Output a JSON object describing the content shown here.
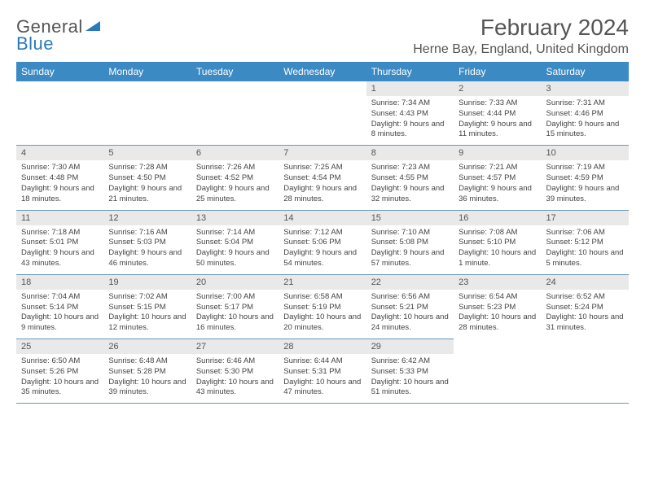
{
  "logo": {
    "word1": "General",
    "word2": "Blue"
  },
  "title": {
    "month": "February 2024",
    "location": "Herne Bay, England, United Kingdom"
  },
  "headers": [
    "Sunday",
    "Monday",
    "Tuesday",
    "Wednesday",
    "Thursday",
    "Friday",
    "Saturday"
  ],
  "colors": {
    "header_bg": "#3b8ac4",
    "header_text": "#ffffff",
    "daynum_bg": "#e9e9e9",
    "border": "#6a99bd",
    "text": "#444444",
    "title_text": "#555555",
    "logo_blue": "#2a7ab9"
  },
  "typography": {
    "month_fontsize": 28,
    "location_fontsize": 16,
    "header_fontsize": 12,
    "daynum_fontsize": 11,
    "content_fontsize": 9.5
  },
  "weeks": [
    [
      {
        "n": "",
        "sr": "",
        "ss": "",
        "dl": ""
      },
      {
        "n": "",
        "sr": "",
        "ss": "",
        "dl": ""
      },
      {
        "n": "",
        "sr": "",
        "ss": "",
        "dl": ""
      },
      {
        "n": "",
        "sr": "",
        "ss": "",
        "dl": ""
      },
      {
        "n": "1",
        "sr": "Sunrise: 7:34 AM",
        "ss": "Sunset: 4:43 PM",
        "dl": "Daylight: 9 hours and 8 minutes."
      },
      {
        "n": "2",
        "sr": "Sunrise: 7:33 AM",
        "ss": "Sunset: 4:44 PM",
        "dl": "Daylight: 9 hours and 11 minutes."
      },
      {
        "n": "3",
        "sr": "Sunrise: 7:31 AM",
        "ss": "Sunset: 4:46 PM",
        "dl": "Daylight: 9 hours and 15 minutes."
      }
    ],
    [
      {
        "n": "4",
        "sr": "Sunrise: 7:30 AM",
        "ss": "Sunset: 4:48 PM",
        "dl": "Daylight: 9 hours and 18 minutes."
      },
      {
        "n": "5",
        "sr": "Sunrise: 7:28 AM",
        "ss": "Sunset: 4:50 PM",
        "dl": "Daylight: 9 hours and 21 minutes."
      },
      {
        "n": "6",
        "sr": "Sunrise: 7:26 AM",
        "ss": "Sunset: 4:52 PM",
        "dl": "Daylight: 9 hours and 25 minutes."
      },
      {
        "n": "7",
        "sr": "Sunrise: 7:25 AM",
        "ss": "Sunset: 4:54 PM",
        "dl": "Daylight: 9 hours and 28 minutes."
      },
      {
        "n": "8",
        "sr": "Sunrise: 7:23 AM",
        "ss": "Sunset: 4:55 PM",
        "dl": "Daylight: 9 hours and 32 minutes."
      },
      {
        "n": "9",
        "sr": "Sunrise: 7:21 AM",
        "ss": "Sunset: 4:57 PM",
        "dl": "Daylight: 9 hours and 36 minutes."
      },
      {
        "n": "10",
        "sr": "Sunrise: 7:19 AM",
        "ss": "Sunset: 4:59 PM",
        "dl": "Daylight: 9 hours and 39 minutes."
      }
    ],
    [
      {
        "n": "11",
        "sr": "Sunrise: 7:18 AM",
        "ss": "Sunset: 5:01 PM",
        "dl": "Daylight: 9 hours and 43 minutes."
      },
      {
        "n": "12",
        "sr": "Sunrise: 7:16 AM",
        "ss": "Sunset: 5:03 PM",
        "dl": "Daylight: 9 hours and 46 minutes."
      },
      {
        "n": "13",
        "sr": "Sunrise: 7:14 AM",
        "ss": "Sunset: 5:04 PM",
        "dl": "Daylight: 9 hours and 50 minutes."
      },
      {
        "n": "14",
        "sr": "Sunrise: 7:12 AM",
        "ss": "Sunset: 5:06 PM",
        "dl": "Daylight: 9 hours and 54 minutes."
      },
      {
        "n": "15",
        "sr": "Sunrise: 7:10 AM",
        "ss": "Sunset: 5:08 PM",
        "dl": "Daylight: 9 hours and 57 minutes."
      },
      {
        "n": "16",
        "sr": "Sunrise: 7:08 AM",
        "ss": "Sunset: 5:10 PM",
        "dl": "Daylight: 10 hours and 1 minute."
      },
      {
        "n": "17",
        "sr": "Sunrise: 7:06 AM",
        "ss": "Sunset: 5:12 PM",
        "dl": "Daylight: 10 hours and 5 minutes."
      }
    ],
    [
      {
        "n": "18",
        "sr": "Sunrise: 7:04 AM",
        "ss": "Sunset: 5:14 PM",
        "dl": "Daylight: 10 hours and 9 minutes."
      },
      {
        "n": "19",
        "sr": "Sunrise: 7:02 AM",
        "ss": "Sunset: 5:15 PM",
        "dl": "Daylight: 10 hours and 12 minutes."
      },
      {
        "n": "20",
        "sr": "Sunrise: 7:00 AM",
        "ss": "Sunset: 5:17 PM",
        "dl": "Daylight: 10 hours and 16 minutes."
      },
      {
        "n": "21",
        "sr": "Sunrise: 6:58 AM",
        "ss": "Sunset: 5:19 PM",
        "dl": "Daylight: 10 hours and 20 minutes."
      },
      {
        "n": "22",
        "sr": "Sunrise: 6:56 AM",
        "ss": "Sunset: 5:21 PM",
        "dl": "Daylight: 10 hours and 24 minutes."
      },
      {
        "n": "23",
        "sr": "Sunrise: 6:54 AM",
        "ss": "Sunset: 5:23 PM",
        "dl": "Daylight: 10 hours and 28 minutes."
      },
      {
        "n": "24",
        "sr": "Sunrise: 6:52 AM",
        "ss": "Sunset: 5:24 PM",
        "dl": "Daylight: 10 hours and 31 minutes."
      }
    ],
    [
      {
        "n": "25",
        "sr": "Sunrise: 6:50 AM",
        "ss": "Sunset: 5:26 PM",
        "dl": "Daylight: 10 hours and 35 minutes."
      },
      {
        "n": "26",
        "sr": "Sunrise: 6:48 AM",
        "ss": "Sunset: 5:28 PM",
        "dl": "Daylight: 10 hours and 39 minutes."
      },
      {
        "n": "27",
        "sr": "Sunrise: 6:46 AM",
        "ss": "Sunset: 5:30 PM",
        "dl": "Daylight: 10 hours and 43 minutes."
      },
      {
        "n": "28",
        "sr": "Sunrise: 6:44 AM",
        "ss": "Sunset: 5:31 PM",
        "dl": "Daylight: 10 hours and 47 minutes."
      },
      {
        "n": "29",
        "sr": "Sunrise: 6:42 AM",
        "ss": "Sunset: 5:33 PM",
        "dl": "Daylight: 10 hours and 51 minutes."
      },
      {
        "n": "",
        "sr": "",
        "ss": "",
        "dl": ""
      },
      {
        "n": "",
        "sr": "",
        "ss": "",
        "dl": ""
      }
    ]
  ]
}
